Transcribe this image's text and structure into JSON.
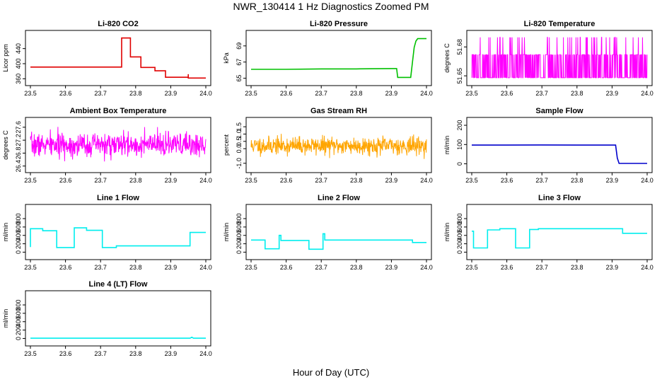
{
  "figure": {
    "title": "NWR_130414  1 Hz Diagnostics Zoomed PM",
    "xlabel": "Hour of Day (UTC)"
  },
  "chart_data": [
    {
      "id": "co2",
      "type": "line",
      "title": "Li-820 CO2",
      "ylabel": "Licor ppm",
      "color": "#e00000",
      "xlim": [
        23.5,
        24.0
      ],
      "ylim": [
        355,
        475
      ],
      "xticks": [
        "23.5",
        "23.6",
        "23.7",
        "23.8",
        "23.9",
        "24.0"
      ],
      "yticks": [
        360,
        400,
        440
      ],
      "series": [
        {
          "x": [
            23.5,
            23.6,
            23.7,
            23.76,
            23.76,
            23.785,
            23.785,
            23.815,
            23.815,
            23.855,
            23.855,
            23.885,
            23.885,
            23.95,
            23.95,
            23.95,
            23.96,
            24.0
          ],
          "y": [
            391,
            391,
            391,
            391,
            468,
            468,
            418,
            418,
            390,
            390,
            381,
            381,
            364,
            364,
            372,
            362,
            362,
            362
          ]
        }
      ]
    },
    {
      "id": "pressure",
      "type": "line",
      "title": "Li-820 Pressure",
      "ylabel": "kPa",
      "color": "#00c000",
      "xlim": [
        23.5,
        24.0
      ],
      "ylim": [
        64.7,
        70.3
      ],
      "xticks": [
        "23.5",
        "23.6",
        "23.7",
        "23.8",
        "23.9",
        "24.0"
      ],
      "yticks": [
        65,
        67,
        69
      ],
      "series": [
        {
          "x": [
            23.5,
            23.6,
            23.7,
            23.8,
            23.9,
            23.915,
            23.918,
            23.955,
            23.96,
            23.965,
            23.97,
            23.975,
            23.99,
            24.0
          ],
          "y": [
            66.1,
            66.1,
            66.15,
            66.15,
            66.2,
            66.2,
            65.1,
            65.1,
            67.0,
            68.8,
            69.6,
            69.9,
            69.9,
            69.9
          ]
        }
      ]
    },
    {
      "id": "licor-temp",
      "type": "line",
      "title": "Li-820 Temperature",
      "ylabel": "degrees C",
      "color": "#ff00ff",
      "xlim": [
        23.5,
        24.0
      ],
      "ylim": [
        51.645,
        51.692
      ],
      "xticks": [
        "23.5",
        "23.6",
        "23.7",
        "23.8",
        "23.9",
        "24.0"
      ],
      "yticks": [
        51.65,
        51.68
      ],
      "yticks_labels": [
        "51.65",
        "51.68"
      ],
      "noise": {
        "kind": "digital",
        "levels": [
          51.648,
          51.672,
          51.69
        ],
        "seed": 3
      }
    },
    {
      "id": "ambient-temp",
      "type": "line",
      "title": "Ambient Box Temperature",
      "ylabel": "degrees C",
      "color": "#ff00ff",
      "xlim": [
        23.5,
        24.0
      ],
      "ylim": [
        26.35,
        27.75
      ],
      "xticks": [
        "23.5",
        "23.6",
        "23.7",
        "23.8",
        "23.9",
        "24.0"
      ],
      "yticks": [
        26.4,
        26.8,
        27.2,
        27.6
      ],
      "yticks_labels": [
        "26.4",
        "26.8",
        "27.2",
        "27.6"
      ],
      "noise": {
        "kind": "gauss",
        "mean": 27.05,
        "sd": 0.18,
        "seed": 7
      }
    },
    {
      "id": "gas-rh",
      "type": "line",
      "title": "Gas Stream RH",
      "ylabel": "percent",
      "color": "#ffa500",
      "xlim": [
        23.5,
        24.0
      ],
      "ylim": [
        -1.3,
        1.8
      ],
      "xticks": [
        "23.5",
        "23.6",
        "23.7",
        "23.8",
        "23.9",
        "24.0"
      ],
      "yticks": [
        -1.0,
        0.0,
        0.5,
        1.0,
        1.5
      ],
      "yticks_labels": [
        "-1.0",
        "0.0",
        "0.5",
        "1.0",
        "1.5"
      ],
      "noise": {
        "kind": "gauss",
        "mean": 0.2,
        "sd": 0.3,
        "seed": 11
      }
    },
    {
      "id": "sample-flow",
      "type": "line",
      "title": "Sample Flow",
      "ylabel": "ml/min",
      "color": "#0000cc",
      "xlim": [
        23.5,
        24.0
      ],
      "ylim": [
        -20,
        215
      ],
      "xticks": [
        "23.5",
        "23.6",
        "23.7",
        "23.8",
        "23.9",
        "24.0"
      ],
      "yticks": [
        0,
        100,
        200
      ],
      "series": [
        {
          "x": [
            23.5,
            23.6,
            23.7,
            23.8,
            23.9,
            23.91,
            23.915,
            23.92,
            23.94,
            24.0
          ],
          "y": [
            97,
            97,
            98,
            97,
            97,
            97,
            30,
            2,
            2,
            2
          ]
        }
      ]
    },
    {
      "id": "line1-flow",
      "type": "line",
      "title": "Line 1 Flow",
      "ylabel": "ml/min",
      "color": "#00eeee",
      "xlim": [
        23.5,
        24.0
      ],
      "ylim": [
        -60,
        1020
      ],
      "xticks": [
        "23.5",
        "23.6",
        "23.7",
        "23.8",
        "23.9",
        "24.0"
      ],
      "yticks": [
        0,
        200,
        400,
        600,
        800
      ],
      "series": [
        {
          "x": [
            23.5,
            23.5,
            23.535,
            23.535,
            23.575,
            23.575,
            23.625,
            23.625,
            23.66,
            23.66,
            23.705,
            23.705,
            23.745,
            23.745,
            23.955,
            23.955,
            24.0
          ],
          "y": [
            120,
            560,
            560,
            510,
            510,
            110,
            110,
            580,
            580,
            520,
            520,
            110,
            110,
            150,
            150,
            470,
            470
          ]
        }
      ]
    },
    {
      "id": "line2-flow",
      "type": "line",
      "title": "Line 2 Flow",
      "ylabel": "ml/min",
      "color": "#00eeee",
      "xlim": [
        23.5,
        24.0
      ],
      "ylim": [
        -60,
        1020
      ],
      "xticks": [
        "23.5",
        "23.6",
        "23.7",
        "23.8",
        "23.9",
        "24.0"
      ],
      "yticks": [
        0,
        200,
        400,
        600,
        800
      ],
      "series": [
        {
          "x": [
            23.5,
            23.54,
            23.54,
            23.58,
            23.58,
            23.585,
            23.585,
            23.665,
            23.665,
            23.705,
            23.705,
            23.71,
            23.71,
            23.96,
            23.96,
            24.0
          ],
          "y": [
            290,
            290,
            80,
            80,
            400,
            400,
            280,
            280,
            70,
            70,
            440,
            440,
            290,
            290,
            230,
            230
          ]
        }
      ]
    },
    {
      "id": "line3-flow",
      "type": "line",
      "title": "Line 3 Flow",
      "ylabel": "ml/min",
      "color": "#00eeee",
      "xlim": [
        23.5,
        24.0
      ],
      "ylim": [
        -60,
        1020
      ],
      "xticks": [
        "23.5",
        "23.6",
        "23.7",
        "23.8",
        "23.9",
        "24.0"
      ],
      "yticks": [
        0,
        200,
        400,
        600,
        800
      ],
      "series": [
        {
          "x": [
            23.5,
            23.505,
            23.505,
            23.545,
            23.545,
            23.58,
            23.58,
            23.625,
            23.625,
            23.665,
            23.665,
            23.69,
            23.69,
            23.93,
            23.93,
            24.0
          ],
          "y": [
            500,
            500,
            100,
            100,
            530,
            530,
            560,
            560,
            100,
            100,
            540,
            540,
            560,
            560,
            450,
            450
          ]
        }
      ]
    },
    {
      "id": "line4-flow",
      "type": "line",
      "title": "Line 4 (LT) Flow",
      "ylabel": "ml/min",
      "color": "#00eeee",
      "xlim": [
        23.5,
        24.0
      ],
      "ylim": [
        -60,
        1020
      ],
      "xticks": [
        "23.5",
        "23.6",
        "23.7",
        "23.8",
        "23.9",
        "24.0"
      ],
      "yticks": [
        0,
        200,
        400,
        600,
        800
      ],
      "series": [
        {
          "x": [
            23.5,
            23.6,
            23.7,
            23.8,
            23.9,
            23.955,
            23.96,
            23.965,
            24.0
          ],
          "y": [
            5,
            5,
            5,
            5,
            5,
            5,
            30,
            5,
            5
          ]
        }
      ]
    }
  ]
}
